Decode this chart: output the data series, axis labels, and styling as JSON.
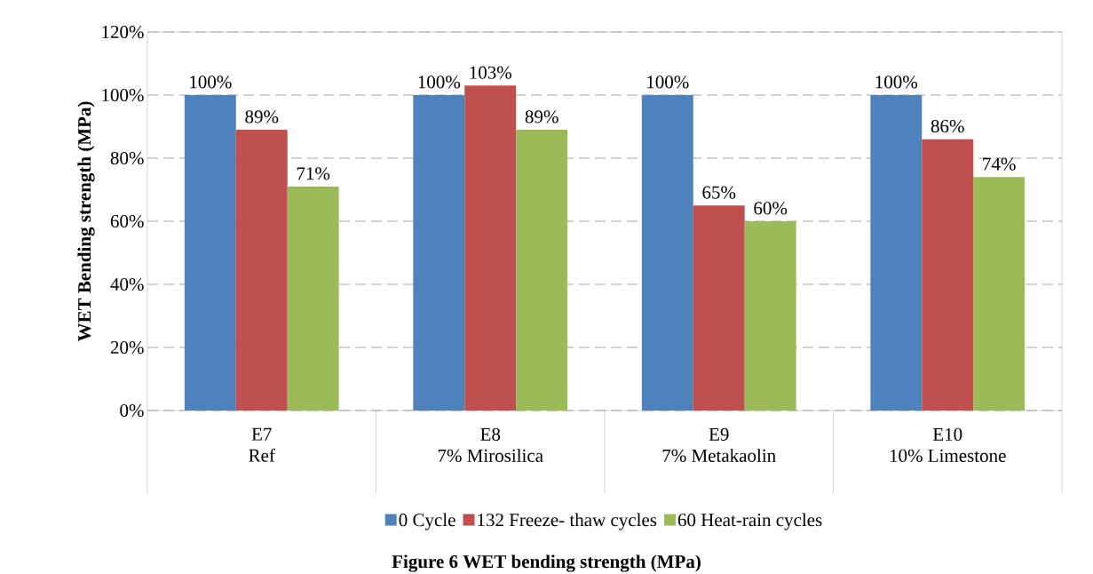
{
  "chart_data": {
    "type": "bar",
    "ylabel": "WET Bending strength (MPa)",
    "categories": [
      "E7\nRef",
      "E8\n7% Mirosilica",
      "E9\n7% Metakaolin",
      "E10\n10% Limestone"
    ],
    "series": [
      {
        "name": "0 Cycle",
        "color": "#4f81bd",
        "values": [
          100,
          100,
          100,
          100
        ],
        "value_labels": [
          "100%",
          "100%",
          "100%",
          "100%"
        ]
      },
      {
        "name": "132 Freeze- thaw cycles",
        "color": "#c0504d",
        "values": [
          89,
          103,
          65,
          86
        ],
        "value_labels": [
          "89%",
          "103%",
          "65%",
          "86%"
        ]
      },
      {
        "name": "60 Heat-rain cycles",
        "color": "#9bbb59",
        "values": [
          71,
          89,
          60,
          74
        ],
        "value_labels": [
          "71%",
          "89%",
          "60%",
          "74%"
        ]
      }
    ],
    "ylim": [
      0,
      120
    ],
    "yticks": [
      {
        "value": 0,
        "label": "0%"
      },
      {
        "value": 20,
        "label": "20%"
      },
      {
        "value": 40,
        "label": "40%"
      },
      {
        "value": 60,
        "label": "60%"
      },
      {
        "value": 80,
        "label": "80%"
      },
      {
        "value": 100,
        "label": "100%"
      },
      {
        "value": 120,
        "label": "120%"
      }
    ],
    "grid": "y",
    "legend": "bottom",
    "annotations": [
      "Figure 6 WET bending strength (MPa)"
    ]
  }
}
